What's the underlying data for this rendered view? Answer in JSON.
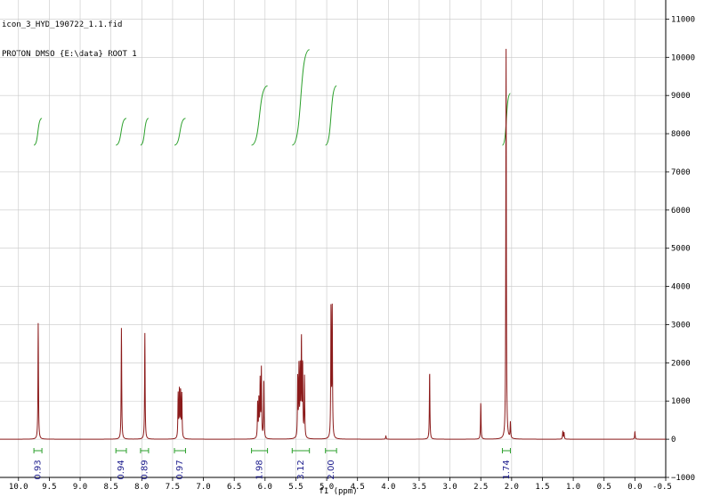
{
  "header": {
    "filename": "icon_3_HYD_190722_1.1.fid",
    "experiment": "PROTON DMSO {E:\\data} ROOT 1"
  },
  "colors": {
    "spectrum": "#8b1a1a",
    "integral": "#2ca02c",
    "integral_label": "#1a1a8c",
    "grid": "#c8c8c8",
    "axis": "#000000"
  },
  "chart_data": {
    "type": "line",
    "title": "",
    "xlabel": "f1 (ppm)",
    "ylabel": "",
    "xlim": [
      10.3,
      -0.5
    ],
    "ylim": [
      -1000,
      11500
    ],
    "x_reversed": true,
    "grid": true,
    "x_ticks": [
      "10.0",
      "9.5",
      "9.0",
      "8.5",
      "8.0",
      "7.5",
      "7.0",
      "6.5",
      "6.0",
      "5.5",
      "5.0",
      "4.5",
      "4.0",
      "3.5",
      "3.0",
      "2.5",
      "2.0",
      "1.5",
      "1.0",
      "0.5",
      "0.0",
      "-0.5"
    ],
    "y_ticks": [
      "-1000",
      "0",
      "1000",
      "2000",
      "3000",
      "4000",
      "5000",
      "6000",
      "7000",
      "8000",
      "9000",
      "10000",
      "11000"
    ],
    "peaks": [
      {
        "ppm": 9.68,
        "height": 3050
      },
      {
        "ppm": 8.33,
        "height": 2920
      },
      {
        "ppm": 7.95,
        "height": 2790
      },
      {
        "ppm": 7.41,
        "height": 1150
      },
      {
        "ppm": 7.39,
        "height": 1250
      },
      {
        "ppm": 7.37,
        "height": 1230
      },
      {
        "ppm": 7.35,
        "height": 1150
      },
      {
        "ppm": 6.12,
        "height": 950
      },
      {
        "ppm": 6.1,
        "height": 1000
      },
      {
        "ppm": 6.08,
        "height": 1480
      },
      {
        "ppm": 6.06,
        "height": 1800
      },
      {
        "ppm": 6.02,
        "height": 1560
      },
      {
        "ppm": 5.47,
        "height": 1600
      },
      {
        "ppm": 5.45,
        "height": 1800
      },
      {
        "ppm": 5.43,
        "height": 1750
      },
      {
        "ppm": 5.41,
        "height": 2550
      },
      {
        "ppm": 5.39,
        "height": 1900
      },
      {
        "ppm": 5.36,
        "height": 1600
      },
      {
        "ppm": 4.93,
        "height": 3450
      },
      {
        "ppm": 4.91,
        "height": 3350
      },
      {
        "ppm": 4.04,
        "height": 90
      },
      {
        "ppm": 3.33,
        "height": 1800
      },
      {
        "ppm": 2.5,
        "height": 970
      },
      {
        "ppm": 2.09,
        "height": 10350
      },
      {
        "ppm": 2.02,
        "height": 420
      },
      {
        "ppm": 1.17,
        "height": 200
      },
      {
        "ppm": 1.15,
        "height": 180
      },
      {
        "ppm": 0.0,
        "height": 200
      }
    ],
    "integrals": [
      {
        "from": 9.75,
        "to": 9.62,
        "label": "0.93",
        "y_start": 7700,
        "y_end": 8400
      },
      {
        "from": 8.42,
        "to": 8.25,
        "label": "0.94",
        "y_start": 7700,
        "y_end": 8400
      },
      {
        "from": 8.02,
        "to": 7.89,
        "label": "0.89",
        "y_start": 7700,
        "y_end": 8400
      },
      {
        "from": 7.47,
        "to": 7.29,
        "label": "0.97",
        "y_start": 7700,
        "y_end": 8400
      },
      {
        "from": 6.22,
        "to": 5.96,
        "label": "1.98",
        "y_start": 7700,
        "y_end": 9250
      },
      {
        "from": 5.56,
        "to": 5.28,
        "label": "3.12",
        "y_start": 7700,
        "y_end": 10200
      },
      {
        "from": 5.02,
        "to": 4.84,
        "label": "2.00",
        "y_start": 7700,
        "y_end": 9250
      },
      {
        "from": 2.15,
        "to": 2.02,
        "label": "1.74",
        "y_start": 7700,
        "y_end": 9050
      }
    ]
  }
}
